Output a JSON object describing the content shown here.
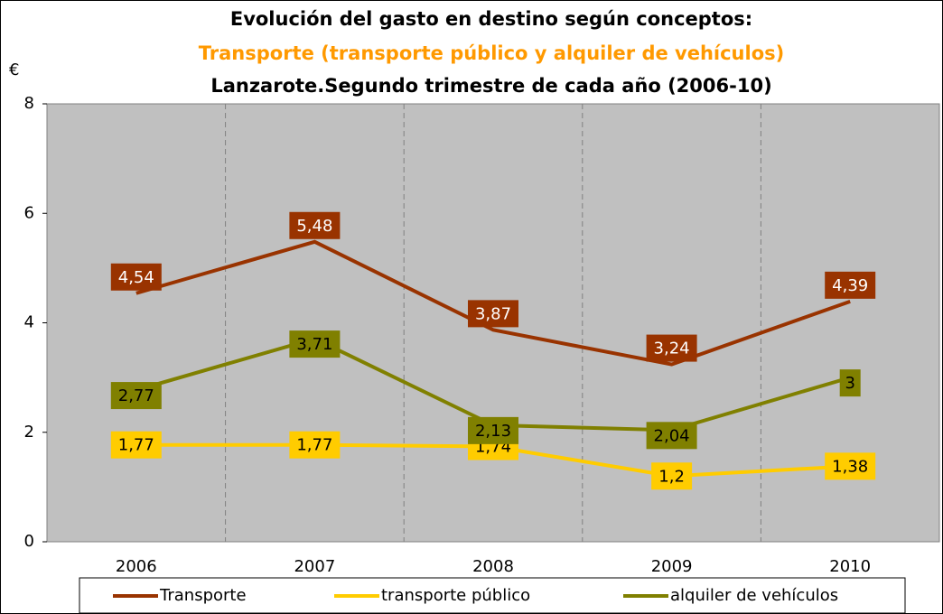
{
  "chart_data": {
    "type": "line",
    "title": "Evolución del gasto en destino según conceptos:",
    "subtitle": "Transporte (transporte público y alquiler de vehículos)",
    "subtitle_2": "Lanzarote.Segundo trimestre de cada año (2006-10)",
    "y_label": "€",
    "categories": [
      "2006",
      "2007",
      "2008",
      "2009",
      "2010"
    ],
    "series": [
      {
        "name": "Transporte",
        "color": "#993300",
        "values": [
          4.54,
          5.48,
          3.87,
          3.24,
          4.39
        ],
        "value_labels": [
          "4,54",
          "5,48",
          "3,87",
          "3,24",
          "4,39"
        ]
      },
      {
        "name": "transporte público",
        "color": "#ffcc00",
        "values": [
          1.77,
          1.77,
          1.74,
          1.2,
          1.38
        ],
        "value_labels": [
          "1,77",
          "1,77",
          "1,74",
          "1,2",
          "1,38"
        ]
      },
      {
        "name": "alquiler de vehículos",
        "color": "#808000",
        "values": [
          2.77,
          3.71,
          2.13,
          2.04,
          3
        ],
        "value_labels": [
          "2,77",
          "3,71",
          "2,13",
          "2,04",
          "3"
        ]
      }
    ],
    "ylim": [
      0,
      8
    ],
    "yticks": [
      0,
      2,
      4,
      6,
      8
    ],
    "grid": true,
    "legend": "bottom"
  }
}
